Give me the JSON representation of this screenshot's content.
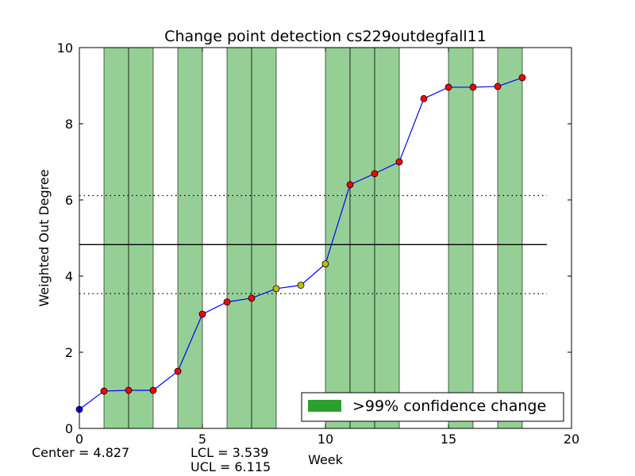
{
  "chart_data": {
    "type": "line",
    "title": "Change point detection cs229outdegfall11",
    "xlabel": "Week",
    "ylabel": "Weighted Out Degree",
    "xlim": [
      0,
      20
    ],
    "ylim": [
      0,
      10
    ],
    "xticks": [
      "0",
      "5",
      "10",
      "15",
      "20"
    ],
    "yticks": [
      "0",
      "2",
      "4",
      "6",
      "8",
      "10"
    ],
    "grid": false,
    "legend": {
      "placement": "lower-right",
      "label": ">99% confidence change",
      "color": "#2ca02c"
    },
    "series": [
      {
        "line_color": "#0000ff",
        "x": [
          0,
          1,
          2,
          3,
          4,
          5,
          6,
          7,
          8,
          9,
          10,
          11,
          12,
          13,
          14,
          15,
          16,
          17,
          18
        ],
        "y": [
          0.5,
          0.98,
          1.0,
          1.0,
          1.5,
          3.0,
          3.32,
          3.42,
          3.67,
          3.76,
          4.32,
          6.4,
          6.69,
          7.0,
          8.66,
          8.96,
          8.96,
          8.98,
          9.21
        ],
        "point_colors": [
          "#0000ff",
          "#ff0000",
          "#ff0000",
          "#ff0000",
          "#ff0000",
          "#ff0000",
          "#ff0000",
          "#ff0000",
          "#bfbf00",
          "#bfbf00",
          "#bfbf00",
          "#ff0000",
          "#ff0000",
          "#ff0000",
          "#ff0000",
          "#ff0000",
          "#ff0000",
          "#ff0000",
          "#ff0000"
        ]
      }
    ],
    "change_regions": [
      [
        1,
        2
      ],
      [
        2,
        3
      ],
      [
        4,
        5
      ],
      [
        6,
        7
      ],
      [
        7,
        8
      ],
      [
        10,
        11
      ],
      [
        11,
        12
      ],
      [
        12,
        13
      ],
      [
        15,
        16
      ],
      [
        17,
        18
      ]
    ],
    "center_line": {
      "value": 4.827,
      "x_range": [
        0,
        19
      ],
      "label": "Center = 4.827"
    },
    "lcl_line": {
      "value": 3.539,
      "x_range": [
        0,
        19
      ],
      "label": "LCL = 3.539"
    },
    "ucl_line": {
      "value": 6.115,
      "x_range": [
        0,
        19
      ],
      "label": "UCL = 6.115"
    }
  }
}
